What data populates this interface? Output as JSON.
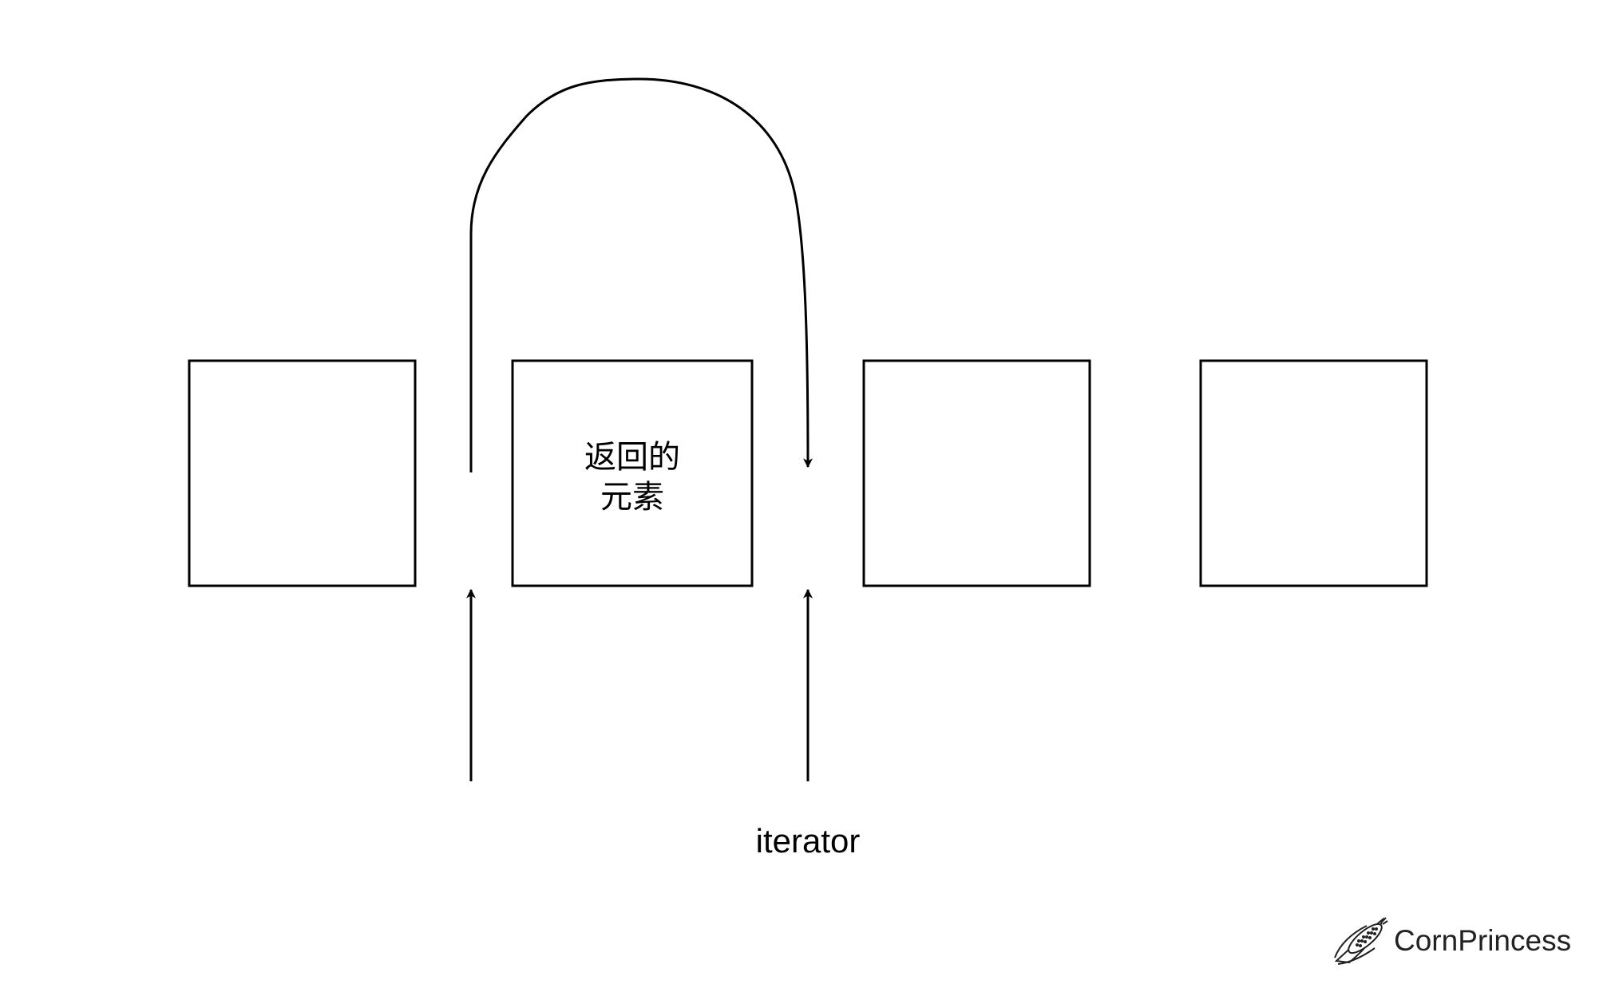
{
  "diagram": {
    "boxes": [
      {
        "id": "box-1",
        "label_lines": []
      },
      {
        "id": "box-2",
        "label_lines": [
          "返回的",
          "元素"
        ]
      },
      {
        "id": "box-3",
        "label_lines": []
      },
      {
        "id": "box-4",
        "label_lines": []
      }
    ],
    "iterator_label": "iterator",
    "stroke_color": "#000000"
  },
  "watermark": {
    "text": "CornPrincess",
    "icon": "corn-icon"
  }
}
